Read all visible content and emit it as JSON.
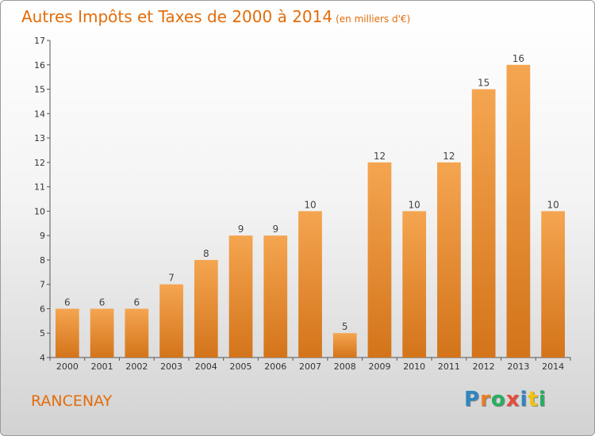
{
  "header": {
    "title": "Autres Impôts et Taxes de 2000 à 2014",
    "unit": "(en milliers d'€)"
  },
  "footer": {
    "commune": "RANCENAY",
    "logo_letters": [
      "P",
      "r",
      "o",
      "x",
      "i",
      "t",
      "i"
    ]
  },
  "colors": {
    "bar_top": "#f5a550",
    "bar_bottom": "#d3741a",
    "title": "#e36c0a",
    "axis": "#555555"
  },
  "chart_data": {
    "type": "bar",
    "title": "Autres Impôts et Taxes de 2000 à 2014",
    "subtitle": "(en milliers d'€)",
    "xlabel": "",
    "ylabel": "",
    "categories": [
      "2000",
      "2001",
      "2002",
      "2003",
      "2004",
      "2005",
      "2006",
      "2007",
      "2008",
      "2009",
      "2010",
      "2011",
      "2012",
      "2013",
      "2014"
    ],
    "values": [
      6,
      6,
      6,
      7,
      8,
      9,
      9,
      10,
      5,
      12,
      10,
      12,
      15,
      16,
      10
    ],
    "data_labels": [
      "6",
      "6",
      "6",
      "7",
      "8",
      "9",
      "9",
      "10",
      "5",
      "12",
      "10",
      "12",
      "15",
      "16",
      "10"
    ],
    "ylim": [
      4,
      17
    ],
    "yticks": [
      4,
      5,
      6,
      7,
      8,
      9,
      10,
      11,
      12,
      13,
      14,
      15,
      16,
      17
    ],
    "grid": false,
    "legend": "none"
  }
}
